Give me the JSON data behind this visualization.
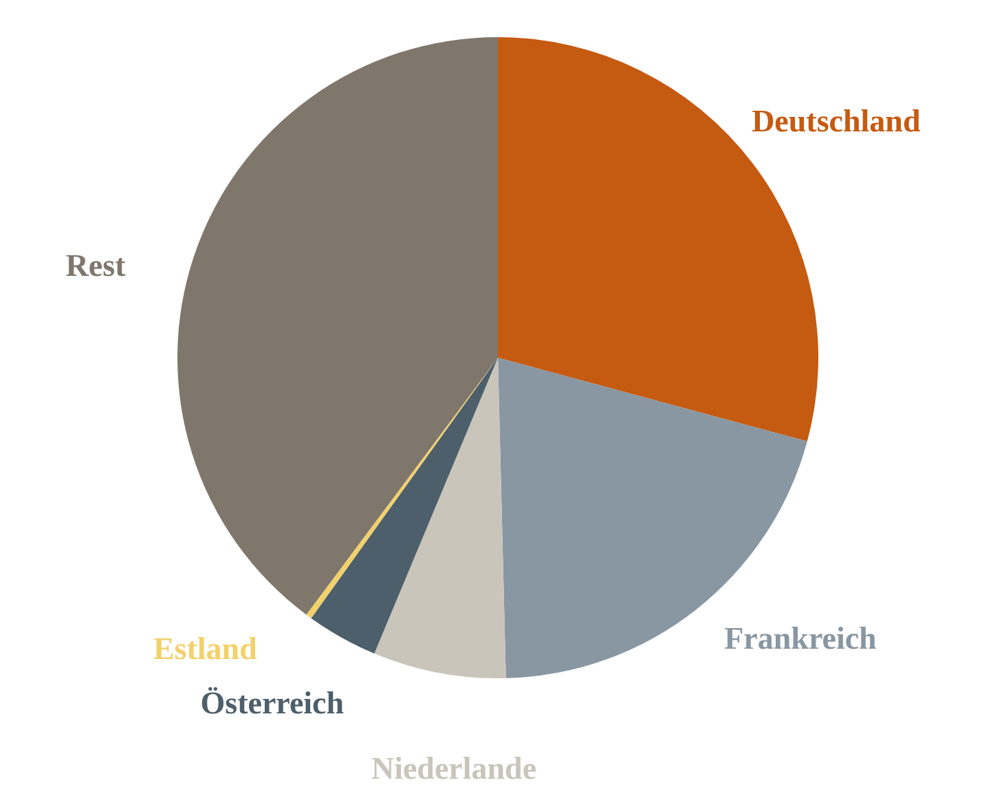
{
  "chart_data": {
    "type": "pie",
    "categories": [
      "Deutschland",
      "Frankreich",
      "Niederlande",
      "Österreich",
      "Estland",
      "Rest"
    ],
    "values": [
      29.2,
      20.4,
      6.7,
      3.6,
      0.3,
      39.8
    ],
    "colors": [
      "#c55a11",
      "#8897a2",
      "#c9c5bb",
      "#4d5f6a",
      "#f2d16b",
      "#7f766c"
    ]
  }
}
